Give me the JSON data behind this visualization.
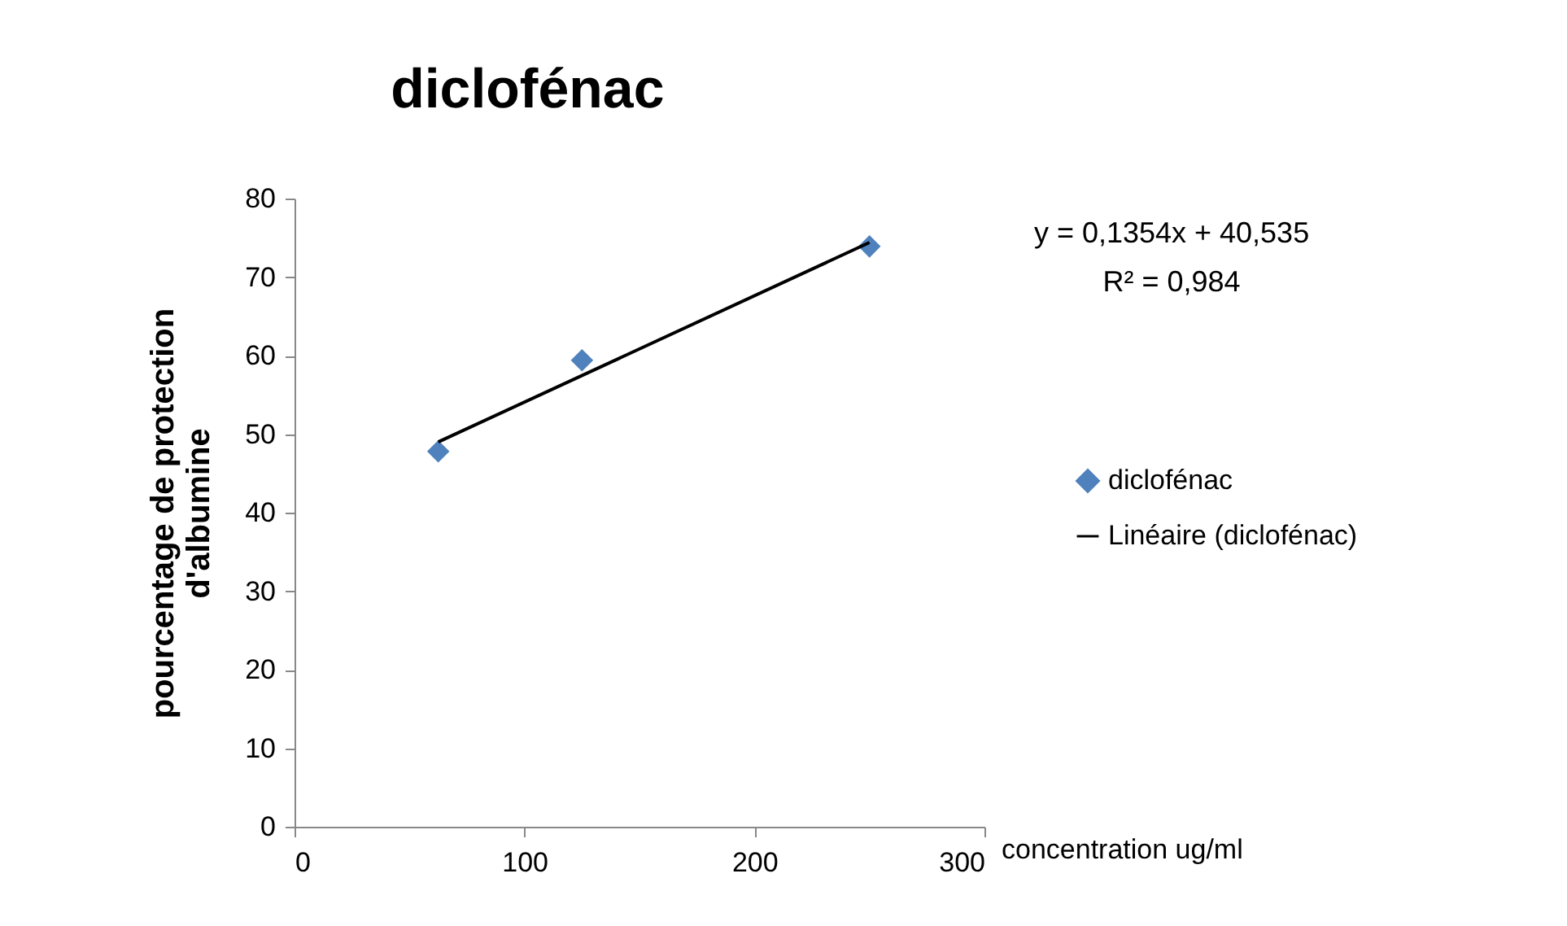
{
  "chart_data": {
    "type": "scatter",
    "title": "diclofénac",
    "xlabel": "concentration ug/ml",
    "ylabel": "pourcentage de protection d'albumine",
    "annotations": [
      "y = 0,1354x + 40,535",
      "R² = 0,984"
    ],
    "xlim": [
      0,
      300
    ],
    "xticks": [
      0,
      100,
      200,
      300
    ],
    "ylim": [
      0,
      80
    ],
    "yticks": [
      0,
      10,
      20,
      30,
      40,
      50,
      60,
      70,
      80
    ],
    "grid": false,
    "legend": "right",
    "series": [
      {
        "name": "diclofénac",
        "marker": "diamond",
        "color": "#4f81bd",
        "x": [
          62.5,
          125,
          250
        ],
        "values": [
          47.8,
          59.4,
          73.9
        ]
      },
      {
        "name": "Linéaire (diclofénac)",
        "type": "line",
        "color": "#000000",
        "x": [
          62.5,
          250
        ],
        "values": [
          49.0,
          74.4
        ]
      }
    ]
  }
}
